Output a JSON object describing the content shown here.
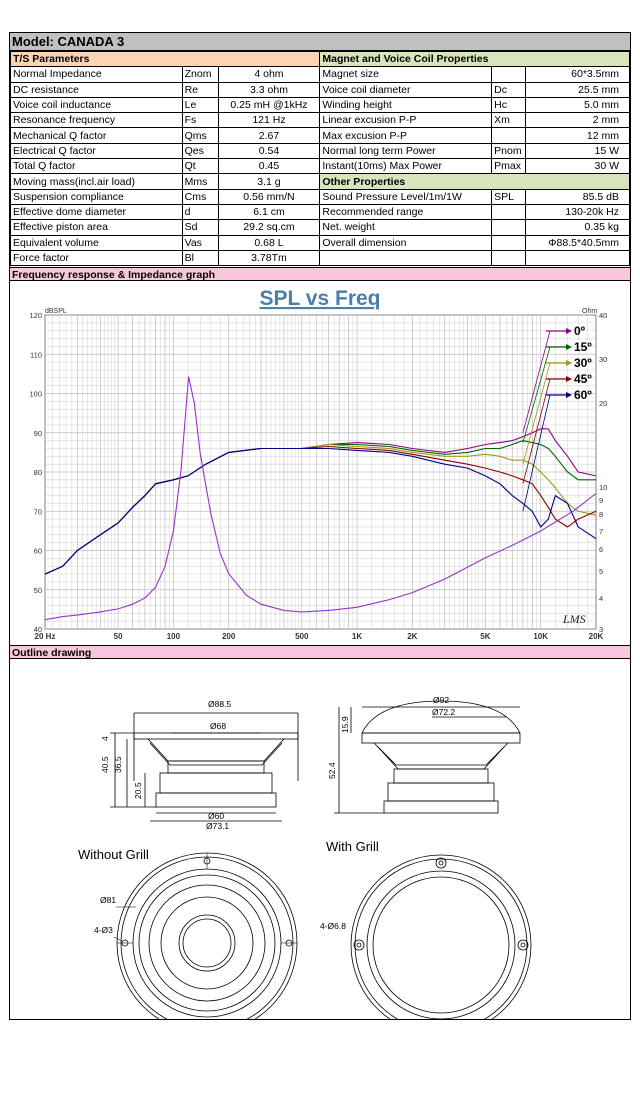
{
  "model_title": "Model: CANADA 3",
  "ts_header": "T/S Parameters",
  "magnet_header": "Magnet and Voice Coil Properties",
  "other_header": "Other Properties",
  "ts_params": [
    {
      "name": "Normal Impedance",
      "sym": "Znom",
      "value": "4 ohm"
    },
    {
      "name": "DC resistance",
      "sym": "Re",
      "value": "3.3 ohm"
    },
    {
      "name": "Voice coil inductance",
      "sym": "Le",
      "value": "0.25 mH @1kHz"
    },
    {
      "name": "Resonance frequency",
      "sym": "Fs",
      "value": "121 Hz"
    },
    {
      "name": "Mechanical Q factor",
      "sym": "Qms",
      "value": "2.67"
    },
    {
      "name": "Electrical Q factor",
      "sym": "Qes",
      "value": "0.54"
    },
    {
      "name": "Total Q factor",
      "sym": "Qt",
      "value": "0.45"
    },
    {
      "name": "Moving mass(incl.air load)",
      "sym": "Mms",
      "value": "3.1 g"
    },
    {
      "name": "Suspension compliance",
      "sym": "Cms",
      "value": "0.56 mm/N"
    },
    {
      "name": "Effective dome diameter",
      "sym": "d",
      "value": "6.1 cm"
    },
    {
      "name": "Effective piston area",
      "sym": "Sd",
      "value": "29.2 sq.cm"
    },
    {
      "name": "Equivalent volume",
      "sym": "Vas",
      "value": "0.68 L"
    },
    {
      "name": "Force factor",
      "sym": "Bl",
      "value": "3.78Tm"
    }
  ],
  "magnet_params": [
    {
      "name": "Magnet size",
      "sym": "",
      "value": "60*3.5mm"
    },
    {
      "name": "Voice coil diameter",
      "sym": "Dc",
      "value": "25.5 mm"
    },
    {
      "name": "Winding height",
      "sym": "Hc",
      "value": "5.0 mm"
    },
    {
      "name": "Linear excusion P-P",
      "sym": "Xm",
      "value": "2 mm"
    },
    {
      "name": "Max excusion P-P",
      "sym": "",
      "value": "12 mm"
    },
    {
      "name": "Normal long term Power",
      "sym": "Pnom",
      "value": "15 W"
    },
    {
      "name": "Instant(10ms) Max Power",
      "sym": "Pmax",
      "value": "30 W"
    }
  ],
  "other_params": [
    {
      "name": "Sound Pressure Level/1m/1W",
      "sym": "SPL",
      "value": "85.5 dB"
    },
    {
      "name": "Recommended range",
      "sym": "",
      "value": "130-20k Hz"
    },
    {
      "name": "Net. weight",
      "sym": "",
      "value": "0.35 kg"
    },
    {
      "name": "Overall dimension",
      "sym": "",
      "value": "Φ88.5*40.5mm"
    }
  ],
  "freq_section": "Frequency response & Impedance graph",
  "outline_section": "Outline drawing",
  "chart_data": {
    "type": "line",
    "title": "SPL vs Freq",
    "ylabel": "dBSPL",
    "y2label": "Ohm",
    "xscale": "log",
    "xlim": [
      20,
      20000
    ],
    "ylim": [
      40,
      120
    ],
    "y2lim": [
      3,
      40
    ],
    "xticks": [
      {
        "v": 20,
        "t": "20 Hz"
      },
      {
        "v": 50,
        "t": "50"
      },
      {
        "v": 100,
        "t": "100"
      },
      {
        "v": 200,
        "t": "200"
      },
      {
        "v": 500,
        "t": "500"
      },
      {
        "v": 1000,
        "t": "1K"
      },
      {
        "v": 2000,
        "t": "2K"
      },
      {
        "v": 5000,
        "t": "5K"
      },
      {
        "v": 10000,
        "t": "10K"
      },
      {
        "v": 20000,
        "t": "20K"
      }
    ],
    "yticks": [
      40,
      50,
      60,
      70,
      80,
      90,
      100,
      110,
      120
    ],
    "y2ticks": [
      3,
      4,
      5,
      6,
      7,
      8,
      9,
      10,
      20,
      30,
      40
    ],
    "legend": [
      "0º",
      "15º",
      "30º",
      "45º",
      "60º"
    ],
    "logo": "LMS",
    "series": [
      {
        "name": "0º",
        "color": "#8b008b",
        "x": [
          20,
          25,
          30,
          40,
          50,
          60,
          70,
          80,
          100,
          120,
          150,
          200,
          300,
          500,
          700,
          1000,
          1500,
          2000,
          3000,
          4000,
          5000,
          6000,
          7000,
          8000,
          9000,
          10000,
          11000,
          12000,
          14000,
          16000,
          20000
        ],
        "y": [
          54,
          56,
          60,
          64,
          67,
          71,
          74,
          77,
          78,
          79,
          82,
          85,
          86,
          86,
          87,
          87.5,
          87,
          86,
          85,
          86,
          87,
          87.5,
          88,
          89,
          90,
          91,
          91,
          88,
          84,
          80,
          79
        ]
      },
      {
        "name": "15º",
        "color": "#006400",
        "x": [
          20,
          25,
          30,
          40,
          50,
          60,
          70,
          80,
          100,
          120,
          150,
          200,
          300,
          500,
          700,
          1000,
          1500,
          2000,
          3000,
          4000,
          5000,
          6000,
          7000,
          8000,
          9000,
          10000,
          11000,
          12000,
          14000,
          16000,
          20000
        ],
        "y": [
          54,
          56,
          60,
          64,
          67,
          71,
          74,
          77,
          78,
          79,
          82,
          85,
          86,
          86,
          87,
          87,
          86.5,
          85.5,
          84.5,
          85,
          86,
          86,
          87,
          88,
          87.5,
          87,
          86,
          84,
          80,
          78,
          78
        ]
      },
      {
        "name": "30º",
        "color": "#9a9a1a",
        "x": [
          20,
          25,
          30,
          40,
          50,
          60,
          70,
          80,
          100,
          120,
          150,
          200,
          300,
          500,
          700,
          1000,
          1500,
          2000,
          3000,
          4000,
          5000,
          6000,
          7000,
          8000,
          9000,
          10000,
          11000,
          12000,
          14000,
          16000,
          20000
        ],
        "y": [
          54,
          56,
          60,
          64,
          67,
          71,
          74,
          77,
          78,
          79,
          82,
          85,
          86,
          86,
          87,
          86.5,
          86,
          85,
          84,
          84,
          84.5,
          84,
          83,
          83,
          82,
          80,
          78,
          76,
          72,
          70,
          69
        ]
      },
      {
        "name": "45º",
        "color": "#8b0000",
        "x": [
          20,
          25,
          30,
          40,
          50,
          60,
          70,
          80,
          100,
          120,
          150,
          200,
          300,
          500,
          700,
          1000,
          1500,
          2000,
          3000,
          4000,
          5000,
          6000,
          7000,
          8000,
          9000,
          10000,
          11000,
          12000,
          14000,
          16000,
          20000
        ],
        "y": [
          54,
          56,
          60,
          64,
          67,
          71,
          74,
          77,
          78,
          79,
          82,
          85,
          86,
          86,
          86.5,
          86,
          85.5,
          84.5,
          83,
          82,
          81,
          80,
          79,
          78,
          77,
          74,
          71,
          68,
          66,
          68,
          70
        ]
      },
      {
        "name": "60º",
        "color": "#00008b",
        "x": [
          20,
          25,
          30,
          40,
          50,
          60,
          70,
          80,
          100,
          120,
          150,
          200,
          300,
          500,
          700,
          1000,
          1500,
          2000,
          3000,
          4000,
          5000,
          6000,
          7000,
          8000,
          9000,
          10000,
          11000,
          12000,
          14000,
          16000,
          20000
        ],
        "y": [
          54,
          56,
          60,
          64,
          67,
          71,
          74,
          77,
          78,
          79,
          82,
          85,
          86,
          86,
          86,
          85.5,
          85,
          84,
          82,
          81,
          79,
          77,
          74,
          72,
          70,
          66,
          68,
          74,
          72,
          66,
          63
        ]
      },
      {
        "name": "Impedance",
        "color": "#9932cc",
        "axis": "y2",
        "x": [
          20,
          25,
          30,
          40,
          50,
          60,
          70,
          80,
          90,
          100,
          110,
          121,
          130,
          140,
          160,
          180,
          200,
          250,
          300,
          400,
          500,
          700,
          1000,
          1500,
          2000,
          3000,
          5000,
          7000,
          10000,
          15000,
          20000
        ],
        "y": [
          3.3,
          3.4,
          3.45,
          3.55,
          3.65,
          3.8,
          4.0,
          4.4,
          5.2,
          7.0,
          12,
          26,
          20,
          14,
          8,
          5.8,
          4.9,
          4.1,
          3.8,
          3.6,
          3.55,
          3.6,
          3.7,
          3.95,
          4.2,
          4.7,
          5.6,
          6.2,
          7.0,
          8.2,
          9.5
        ]
      }
    ]
  },
  "drawing": {
    "side_dims": [
      "Ø88.5",
      "Ø68",
      "40.5",
      "36.5",
      "4",
      "20.5",
      "Ø60",
      "Ø73.1"
    ],
    "grill_dims": [
      "Ø92",
      "Ø72.2",
      "15.9",
      "52.4"
    ],
    "front_dims": [
      "Ø81",
      "4-Ø3"
    ],
    "grill_front_dims": [
      "4-Ø6.8"
    ],
    "without_grill": "Without Grill",
    "with_grill": "With Grill"
  }
}
